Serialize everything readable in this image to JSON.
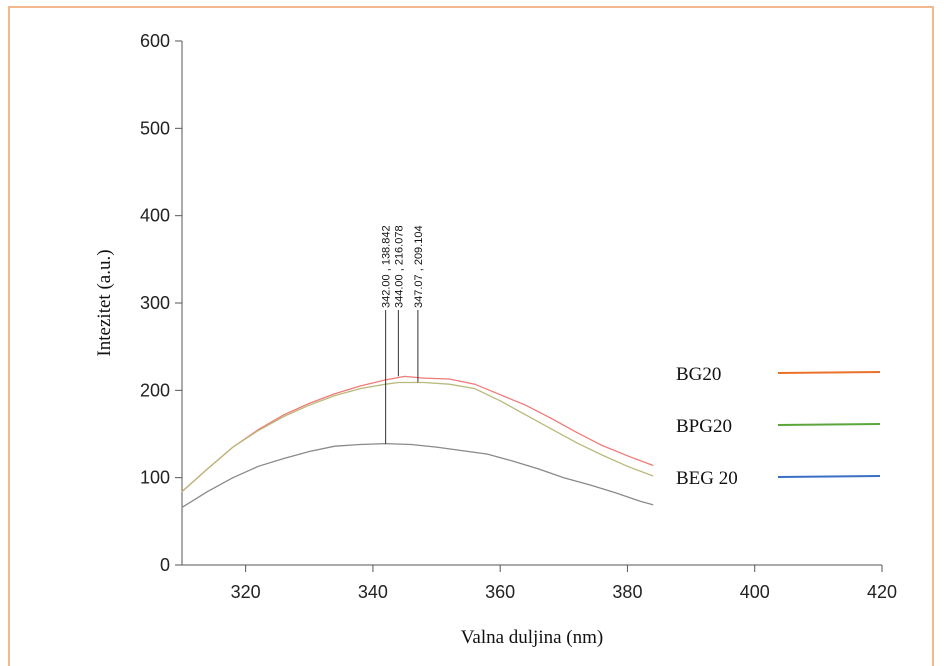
{
  "chart_data": {
    "type": "line",
    "title": "",
    "xlabel": "Valna duljina (nm)",
    "ylabel": "Intezitet (a.u.)",
    "xlim": [
      310,
      420
    ],
    "ylim": [
      0,
      600
    ],
    "x_ticks": [
      320,
      340,
      360,
      380,
      400,
      420
    ],
    "y_ticks": [
      0,
      100,
      200,
      300,
      400,
      500,
      600
    ],
    "grid": false,
    "legend_position": "right",
    "legend": [
      {
        "label": "BG20",
        "color": "#e8722a"
      },
      {
        "label": "BPG20",
        "color": "#5aa63a"
      },
      {
        "label": "BEG 20",
        "color": "#3a6fc4"
      }
    ],
    "series": [
      {
        "color": "#f07a78",
        "x": [
          310,
          314,
          318,
          322,
          326,
          330,
          334,
          338,
          342,
          345,
          348,
          352,
          356,
          360,
          364,
          368,
          372,
          376,
          380,
          384
        ],
        "y": [
          84,
          110,
          135,
          155,
          172,
          185,
          196,
          205,
          212,
          216,
          214,
          213,
          207,
          195,
          183,
          168,
          152,
          137,
          125,
          114
        ]
      },
      {
        "color": "#b9b97c",
        "x": [
          310,
          314,
          318,
          322,
          326,
          330,
          334,
          338,
          342,
          344,
          348,
          352,
          356,
          360,
          364,
          368,
          372,
          376,
          380,
          384
        ],
        "y": [
          84,
          110,
          135,
          154,
          170,
          183,
          194,
          202,
          207,
          209,
          209,
          207,
          202,
          188,
          172,
          156,
          140,
          126,
          113,
          102
        ]
      },
      {
        "color": "#8a8a8a",
        "x": [
          310,
          314,
          318,
          322,
          326,
          330,
          334,
          338,
          342,
          346,
          350,
          354,
          358,
          362,
          366,
          370,
          374,
          378,
          382,
          384
        ],
        "y": [
          66,
          84,
          100,
          113,
          122,
          130,
          136,
          138,
          139,
          138,
          135,
          131,
          127,
          119,
          110,
          100,
          92,
          83,
          73,
          69
        ]
      }
    ],
    "annotations": [
      {
        "x": 342.0,
        "y": 138.842,
        "text": "342.00 , 138.842"
      },
      {
        "x": 344.0,
        "y": 216.078,
        "text": "344.00 , 216.078"
      },
      {
        "x": 347.07,
        "y": 209.104,
        "text": "347.07 , 209.104"
      }
    ]
  }
}
